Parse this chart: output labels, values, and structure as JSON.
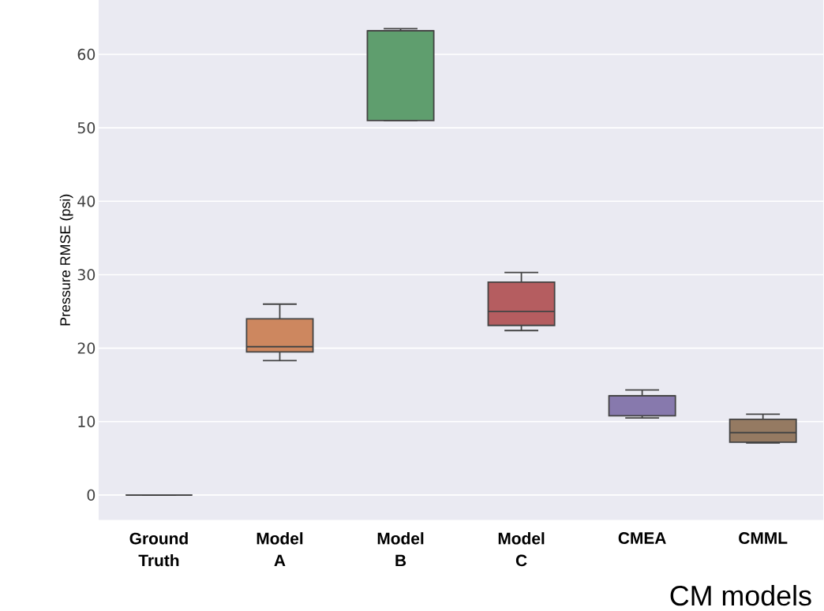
{
  "chart_data": {
    "type": "box",
    "ylabel": "Pressure RMSE (psi)",
    "xlabel": "CM models",
    "categories": [
      "Ground Truth",
      "Model A",
      "Model B",
      "Model C",
      "CMEA",
      "CMML"
    ],
    "boxes": [
      {
        "low": 0,
        "q1": 0,
        "median": 0,
        "q3": 0,
        "high": 0
      },
      {
        "low": 18.3,
        "q1": 19.5,
        "median": 20.2,
        "q3": 24.0,
        "high": 26.0
      },
      {
        "low": 51.0,
        "q1": 51.0,
        "median": 63.2,
        "q3": 63.2,
        "high": 63.5
      },
      {
        "low": 22.4,
        "q1": 23.1,
        "median": 25.0,
        "q3": 29.0,
        "high": 30.3
      },
      {
        "low": 10.5,
        "q1": 10.8,
        "median": 13.5,
        "q3": 13.5,
        "high": 14.3
      },
      {
        "low": 7.1,
        "q1": 7.2,
        "median": 8.5,
        "q3": 10.3,
        "high": 11.0
      }
    ],
    "colors": [
      "#444444",
      "#cd875f",
      "#5f9e6e",
      "#b55d60",
      "#8779ad",
      "#957a62"
    ],
    "ylim": [
      -3.4,
      67.4
    ],
    "yticks": [
      0,
      10,
      20,
      30,
      40,
      50,
      60
    ],
    "grid": "y"
  }
}
